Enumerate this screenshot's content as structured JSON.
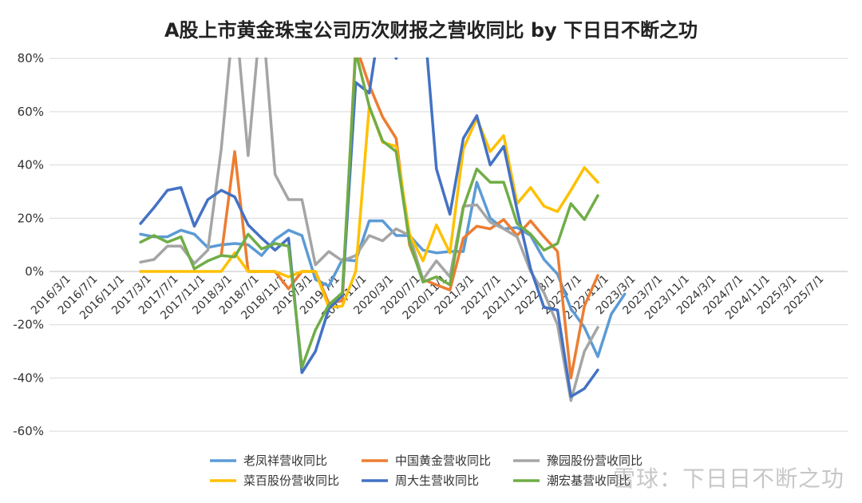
{
  "chart_data": {
    "type": "line",
    "title": "A股上市黄金珠宝公司历次财报之营收同比 by 下日日不断之功",
    "ylim": [
      -60,
      80
    ],
    "y_ticks": [
      "80%",
      "60%",
      "40%",
      "20%",
      "0%",
      "-20%",
      "-40%",
      "-60%"
    ],
    "y_tick_values": [
      80,
      60,
      40,
      20,
      0,
      -20,
      -40,
      -60
    ],
    "grid": true,
    "legend_position": "bottom",
    "x": [
      "2016/3/1",
      "2016/5/1",
      "2016/7/1",
      "2016/9/1",
      "2016/11/1",
      "2017/1/1",
      "2017/3/1",
      "2017/5/1",
      "2017/7/1",
      "2017/9/1",
      "2017/11/1",
      "2018/1/1",
      "2018/3/1",
      "2018/5/1",
      "2018/7/1",
      "2018/9/1",
      "2018/11/1",
      "2019/1/1",
      "2019/3/1",
      "2019/5/1",
      "2019/7/1",
      "2019/9/1",
      "2019/11/1",
      "2020/1/1",
      "2020/3/1",
      "2020/5/1",
      "2020/7/1",
      "2020/9/1",
      "2020/11/1",
      "2021/1/1",
      "2021/3/1",
      "2021/5/1",
      "2021/7/1",
      "2021/9/1",
      "2021/11/1",
      "2022/1/1",
      "2022/3/1",
      "2022/5/1",
      "2022/7/1",
      "2022/9/1",
      "2022/11/1",
      "2023/1/1",
      "2023/3/1",
      "2023/5/1",
      "2023/7/1",
      "2023/9/1",
      "2023/11/1",
      "2024/1/1",
      "2024/3/1",
      "2024/5/1",
      "2024/7/1",
      "2024/9/1",
      "2024/11/1",
      "2025/1/1",
      "2025/3/1",
      "2025/5/1",
      "2025/7/1",
      "2025/9/1"
    ],
    "x_tick_labels": [
      "2016/3/1",
      "2016/7/1",
      "2016/11/1",
      "2017/3/1",
      "2017/7/1",
      "2017/11/1",
      "2018/3/1",
      "2018/7/1",
      "2018/11/1",
      "2019/3/1",
      "2019/7/1",
      "2019/11/1",
      "2020/3/1",
      "2020/7/1",
      "2020/11/1",
      "2021/3/1",
      "2021/7/1",
      "2021/11/1",
      "2022/3/1",
      "2022/7/1",
      "2022/11/1",
      "2023/3/1",
      "2023/7/1",
      "2023/11/1",
      "2024/3/1",
      "2024/7/1",
      "2024/11/1",
      "2025/3/1",
      "2025/7/1"
    ],
    "series": [
      {
        "name": "老凤祥营收同比",
        "color": "#5b9bd5",
        "points": [
          [
            6,
            14
          ],
          [
            7,
            13
          ],
          [
            8,
            13
          ],
          [
            9,
            15.5
          ],
          [
            10,
            14
          ],
          [
            11,
            9
          ],
          [
            12,
            10
          ],
          [
            13,
            10.5
          ],
          [
            14,
            10
          ],
          [
            15,
            6
          ],
          [
            16,
            12
          ],
          [
            17,
            15.5
          ],
          [
            18,
            13.5
          ],
          [
            19,
            -3
          ],
          [
            20,
            -5.5
          ],
          [
            21,
            4.5
          ],
          [
            22,
            4
          ],
          [
            23,
            19
          ],
          [
            24,
            19
          ],
          [
            25,
            13.5
          ],
          [
            26,
            13.5
          ],
          [
            27,
            8
          ],
          [
            28,
            7
          ],
          [
            29,
            7.5
          ],
          [
            30,
            7.5
          ],
          [
            31,
            33.5
          ],
          [
            32,
            20
          ],
          [
            33,
            16
          ],
          [
            34,
            16.5
          ],
          [
            35,
            13.5
          ],
          [
            36,
            4.5
          ],
          [
            37,
            -1
          ],
          [
            38,
            -14
          ],
          [
            39,
            -21
          ],
          [
            40,
            -32
          ],
          [
            41,
            -16
          ],
          [
            42,
            -8.5
          ]
        ]
      },
      {
        "name": "中国黄金营收同比",
        "color": "#ed7d31",
        "points": [
          [
            12,
            6
          ],
          [
            13,
            45
          ],
          [
            14,
            0
          ],
          [
            15,
            0
          ],
          [
            16,
            0
          ],
          [
            17,
            -6.5
          ],
          [
            18,
            0
          ],
          [
            19,
            0
          ],
          [
            20,
            -12
          ],
          [
            21,
            -11
          ],
          [
            22,
            85
          ],
          [
            23,
            70
          ],
          [
            24,
            58
          ],
          [
            25,
            50
          ],
          [
            26,
            10
          ],
          [
            27,
            -3
          ],
          [
            28,
            -5
          ],
          [
            29,
            -7
          ],
          [
            30,
            12.5
          ],
          [
            31,
            17
          ],
          [
            32,
            16
          ],
          [
            33,
            19.5
          ],
          [
            34,
            13.5
          ],
          [
            35,
            19
          ],
          [
            36,
            13
          ],
          [
            37,
            7.5
          ],
          [
            38,
            -40
          ],
          [
            39,
            -13
          ],
          [
            40,
            -1.5
          ]
        ]
      },
      {
        "name": "豫园股份营收同比",
        "color": "#a5a5a5",
        "points": [
          [
            6,
            3.5
          ],
          [
            7,
            4.5
          ],
          [
            8,
            9.5
          ],
          [
            9,
            9.5
          ],
          [
            10,
            3
          ],
          [
            11,
            8
          ],
          [
            12,
            46
          ],
          [
            13,
            100
          ],
          [
            14,
            43.5
          ],
          [
            15,
            100
          ],
          [
            16,
            36.5
          ],
          [
            17,
            27
          ],
          [
            18,
            27
          ],
          [
            19,
            2.5
          ],
          [
            20,
            7.5
          ],
          [
            21,
            4
          ],
          [
            22,
            6
          ],
          [
            23,
            13.5
          ],
          [
            24,
            11.5
          ],
          [
            25,
            16
          ],
          [
            26,
            13.5
          ],
          [
            27,
            -3
          ],
          [
            28,
            4
          ],
          [
            29,
            -2
          ],
          [
            30,
            24.5
          ],
          [
            31,
            25
          ],
          [
            32,
            18.5
          ],
          [
            33,
            16
          ],
          [
            34,
            13
          ],
          [
            35,
            0
          ],
          [
            36,
            -8
          ],
          [
            37,
            -20
          ],
          [
            38,
            -48.5
          ],
          [
            39,
            -30
          ],
          [
            40,
            -21
          ]
        ]
      },
      {
        "name": "菜百股份营收同比",
        "color": "#ffc000",
        "points": [
          [
            6,
            0
          ],
          [
            7,
            0
          ],
          [
            8,
            0
          ],
          [
            9,
            0
          ],
          [
            10,
            0
          ],
          [
            11,
            0
          ],
          [
            12,
            0
          ],
          [
            13,
            7
          ],
          [
            14,
            0
          ],
          [
            15,
            0
          ],
          [
            16,
            0
          ],
          [
            17,
            -2
          ],
          [
            18,
            0
          ],
          [
            19,
            0
          ],
          [
            20,
            -13.5
          ],
          [
            21,
            -13
          ],
          [
            22,
            0
          ],
          [
            23,
            62
          ],
          [
            24,
            48.5
          ],
          [
            25,
            47
          ],
          [
            26,
            14
          ],
          [
            27,
            4
          ],
          [
            28,
            17.5
          ],
          [
            29,
            7
          ],
          [
            30,
            46
          ],
          [
            31,
            57.5
          ],
          [
            32,
            45
          ],
          [
            33,
            51
          ],
          [
            34,
            25.5
          ],
          [
            35,
            31.5
          ],
          [
            36,
            24.5
          ],
          [
            37,
            22.5
          ],
          [
            38,
            30.5
          ],
          [
            39,
            39
          ],
          [
            40,
            33.5
          ]
        ]
      },
      {
        "name": "周大生营收同比",
        "color": "#4472c4",
        "points": [
          [
            6,
            18
          ],
          [
            7,
            24
          ],
          [
            8,
            30.5
          ],
          [
            9,
            31.5
          ],
          [
            10,
            17
          ],
          [
            11,
            27
          ],
          [
            12,
            30.5
          ],
          [
            13,
            28
          ],
          [
            14,
            17.5
          ],
          [
            15,
            12.5
          ],
          [
            16,
            8
          ],
          [
            17,
            12.5
          ],
          [
            18,
            -38
          ],
          [
            19,
            -30
          ],
          [
            20,
            -14
          ],
          [
            21,
            -9
          ],
          [
            22,
            71
          ],
          [
            23,
            67
          ],
          [
            24,
            100
          ],
          [
            25,
            80
          ],
          [
            26,
            100
          ],
          [
            27,
            100
          ],
          [
            28,
            38.5
          ],
          [
            29,
            21.5
          ],
          [
            30,
            50
          ],
          [
            31,
            58.5
          ],
          [
            32,
            40
          ],
          [
            33,
            47
          ],
          [
            34,
            23
          ],
          [
            35,
            1
          ],
          [
            36,
            -13.5
          ],
          [
            37,
            -14.5
          ],
          [
            38,
            -47
          ],
          [
            39,
            -44
          ],
          [
            40,
            -37
          ]
        ]
      },
      {
        "name": "潮宏基营收同比",
        "color": "#70ad47",
        "points": [
          [
            6,
            11
          ],
          [
            7,
            13.5
          ],
          [
            8,
            11
          ],
          [
            9,
            13
          ],
          [
            10,
            1
          ],
          [
            11,
            4
          ],
          [
            12,
            6
          ],
          [
            13,
            5.5
          ],
          [
            14,
            14
          ],
          [
            15,
            8.5
          ],
          [
            16,
            10.5
          ],
          [
            17,
            9.5
          ],
          [
            18,
            -36
          ],
          [
            19,
            -22
          ],
          [
            20,
            -12.5
          ],
          [
            21,
            -8
          ],
          [
            22,
            82.5
          ],
          [
            23,
            62
          ],
          [
            24,
            49
          ],
          [
            25,
            45
          ],
          [
            26,
            11
          ],
          [
            27,
            -4
          ],
          [
            28,
            -2
          ],
          [
            29,
            -5
          ],
          [
            30,
            24
          ],
          [
            31,
            38.5
          ],
          [
            32,
            33.5
          ],
          [
            33,
            33.5
          ],
          [
            34,
            18
          ],
          [
            35,
            14
          ],
          [
            36,
            8
          ],
          [
            37,
            10.5
          ],
          [
            38,
            25.5
          ],
          [
            39,
            19.5
          ],
          [
            40,
            28.5
          ]
        ]
      }
    ]
  },
  "watermark": {
    "text": "雪球：下日日不断之功"
  }
}
